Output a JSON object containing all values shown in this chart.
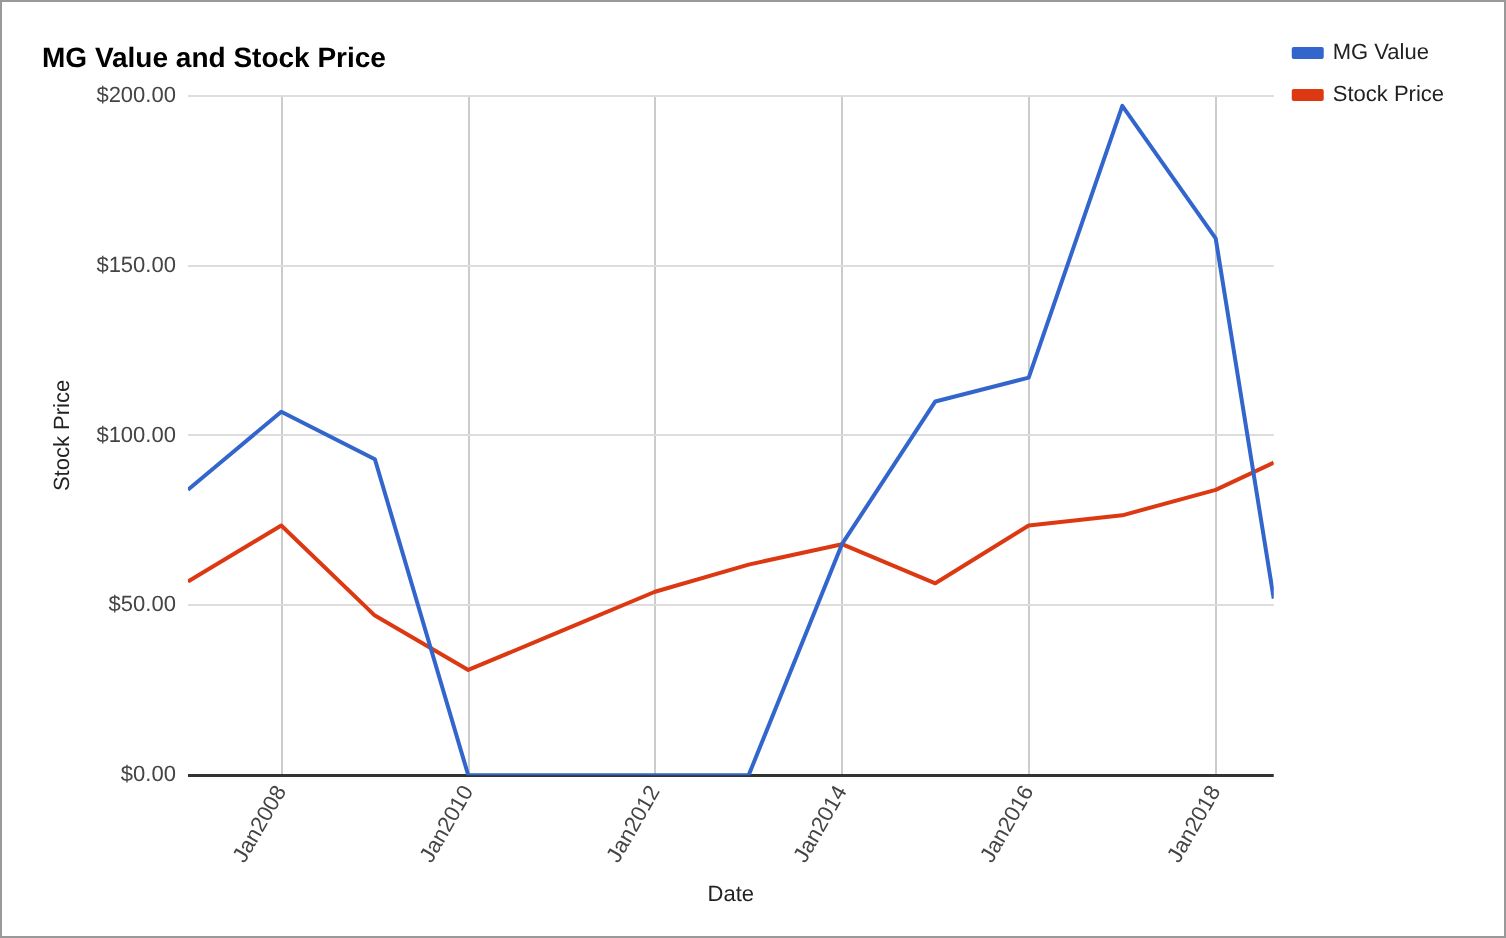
{
  "chart_data": {
    "type": "line",
    "title": "MG Value and Stock Price",
    "xlabel": "Date",
    "ylabel": "Stock Price",
    "x": [
      "2006-12-31",
      "2007-12-31",
      "2008-12-31",
      "2009-12-31",
      "2010-12-31",
      "2011-12-31",
      "2012-12-31",
      "2013-12-31",
      "2014-12-31",
      "2015-12-31",
      "2016-12-31",
      "2017-12-31",
      "2018-08-15"
    ],
    "series": [
      {
        "name": "MG Value",
        "color": "#3366cc",
        "values": [
          84,
          107,
          93,
          0,
          0,
          0,
          0,
          68,
          110,
          117,
          197,
          158,
          52
        ]
      },
      {
        "name": "Stock Price",
        "color": "#dc3912",
        "values": [
          57,
          73.5,
          47,
          31,
          42.5,
          54,
          62,
          68,
          56.5,
          73.5,
          76.5,
          84,
          92
        ]
      }
    ],
    "xlim": [
      "2006-12-31",
      "2018-08-15"
    ],
    "xticks": [
      {
        "value": "2008-01-01",
        "label": "Jan2008"
      },
      {
        "value": "2010-01-01",
        "label": "Jan2010"
      },
      {
        "value": "2012-01-01",
        "label": "Jan2012"
      },
      {
        "value": "2014-01-01",
        "label": "Jan2014"
      },
      {
        "value": "2016-01-01",
        "label": "Jan2016"
      },
      {
        "value": "2018-01-01",
        "label": "Jan2018"
      }
    ],
    "ylim": [
      0,
      200
    ],
    "yticks": [
      {
        "value": 0,
        "label": "$0.00"
      },
      {
        "value": 50,
        "label": "$50.00"
      },
      {
        "value": 100,
        "label": "$100.00"
      },
      {
        "value": 150,
        "label": "$150.00"
      },
      {
        "value": 200,
        "label": "$200.00"
      }
    ],
    "grid": true,
    "legend": "top right",
    "marker": "none",
    "line_style": "solid"
  }
}
